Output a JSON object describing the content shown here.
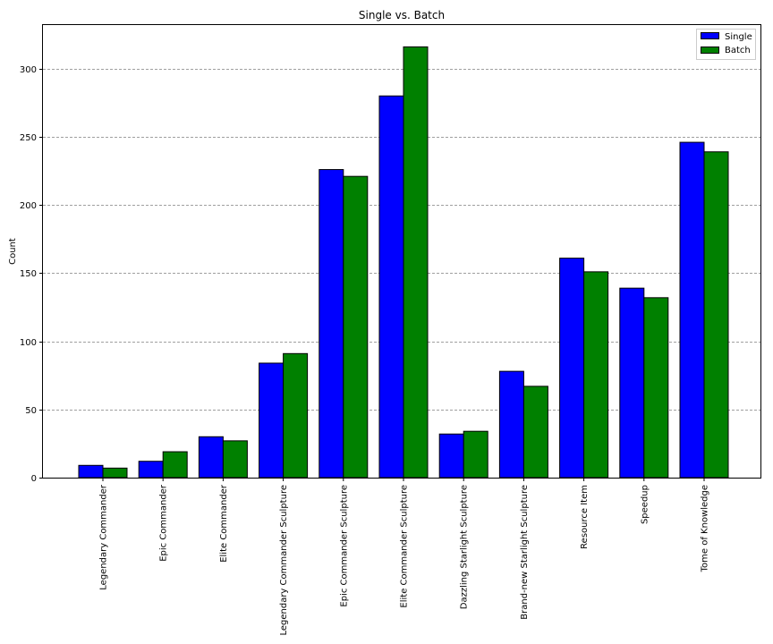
{
  "chart_data": {
    "type": "bar",
    "title": "Single vs. Batch",
    "xlabel": "",
    "ylabel": "Count",
    "ylim": [
      0,
      332
    ],
    "yticks": [
      0,
      50,
      100,
      150,
      200,
      250,
      300
    ],
    "grid": "horizontal dashed",
    "legend_position": "top-right",
    "categories": [
      "Legendary Commander",
      "Epic Commander",
      "Elite Commander",
      "Legendary Commander Sculpture",
      "Epic Commander Sculpture",
      "Elite Commander Sculpture",
      "Dazzling Starlight Sculpture",
      "Brand-new Starlight Sculpture",
      "Resource Item",
      "Speedup",
      "Tome of Knowledge"
    ],
    "category_colors": [
      "#c97e00",
      "#80208c",
      "#1b6f8c",
      "#c97e00",
      "#80208c",
      "#1b6f8c",
      "#c97e00",
      "#80208c",
      "#000000",
      "#000000",
      "#000000"
    ],
    "series": [
      {
        "name": "Single",
        "color": "#0000ff",
        "values": [
          9,
          12,
          30,
          84,
          226,
          280,
          32,
          78,
          161,
          139,
          246
        ]
      },
      {
        "name": "Batch",
        "color": "#008000",
        "values": [
          7,
          19,
          27,
          91,
          221,
          316,
          34,
          67,
          151,
          132,
          239
        ]
      }
    ]
  }
}
